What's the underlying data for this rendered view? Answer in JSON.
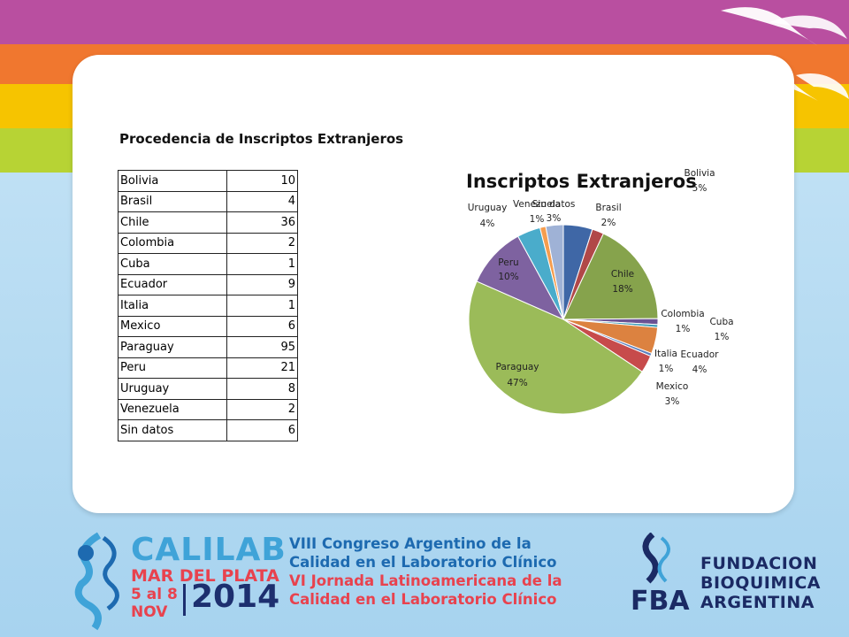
{
  "table": {
    "title": "Procedencia de Inscriptos Extranjeros",
    "rows": [
      {
        "country": "Bolivia",
        "count": "10"
      },
      {
        "country": "Brasil",
        "count": "4"
      },
      {
        "country": "Chile",
        "count": "36"
      },
      {
        "country": "Colombia",
        "count": "2"
      },
      {
        "country": "Cuba",
        "count": "1"
      },
      {
        "country": "Ecuador",
        "count": "9"
      },
      {
        "country": "Italia",
        "count": "1"
      },
      {
        "country": "Mexico",
        "count": "6"
      },
      {
        "country": "Paraguay",
        "count": "95"
      },
      {
        "country": "Peru",
        "count": "21"
      },
      {
        "country": "Uruguay",
        "count": "8"
      },
      {
        "country": "Venezuela",
        "count": "2"
      },
      {
        "country": "Sin datos",
        "count": "6"
      }
    ]
  },
  "chart_data": {
    "type": "pie",
    "title": "Inscriptos Extranjeros",
    "categories": [
      "Bolivia",
      "Brasil",
      "Chile",
      "Colombia",
      "Cuba",
      "Ecuador",
      "Italia",
      "Mexico",
      "Paraguay",
      "Peru",
      "Uruguay",
      "Venezuela",
      "Sin datos"
    ],
    "values": [
      10,
      4,
      36,
      2,
      1,
      9,
      1,
      6,
      95,
      21,
      8,
      2,
      6
    ],
    "percent_labels": [
      "5%",
      "2%",
      "18%",
      "1%",
      "1%",
      "4%",
      "1%",
      "3%",
      "47%",
      "10%",
      "4%",
      "1%",
      "3%"
    ],
    "colors": [
      "#3f67a6",
      "#b14848",
      "#86a34c",
      "#6b5394",
      "#3e9cb6",
      "#dc8240",
      "#5b7fbd",
      "#c74b4b",
      "#9bbb59",
      "#7e62a0",
      "#4aaccb",
      "#f59d4e",
      "#9fb2d6"
    ]
  },
  "footer": {
    "calilab": "CALILAB",
    "mar_del_plata": "MAR DEL PLATA",
    "dates": "5 al 8",
    "month": "NOV",
    "year": "2014",
    "conf_line1": "VIII Congreso Argentino de la",
    "conf_line2": "Calidad en el Laboratorio Clínico",
    "conf_line3": "VI Jornada Latinoamericana de la",
    "conf_line4": "Calidad en el Laboratorio Clínico",
    "fba": "FBA",
    "fund1": "FUNDACION",
    "fund2": "BIOQUIMICA",
    "fund3": "ARGENTINA"
  }
}
